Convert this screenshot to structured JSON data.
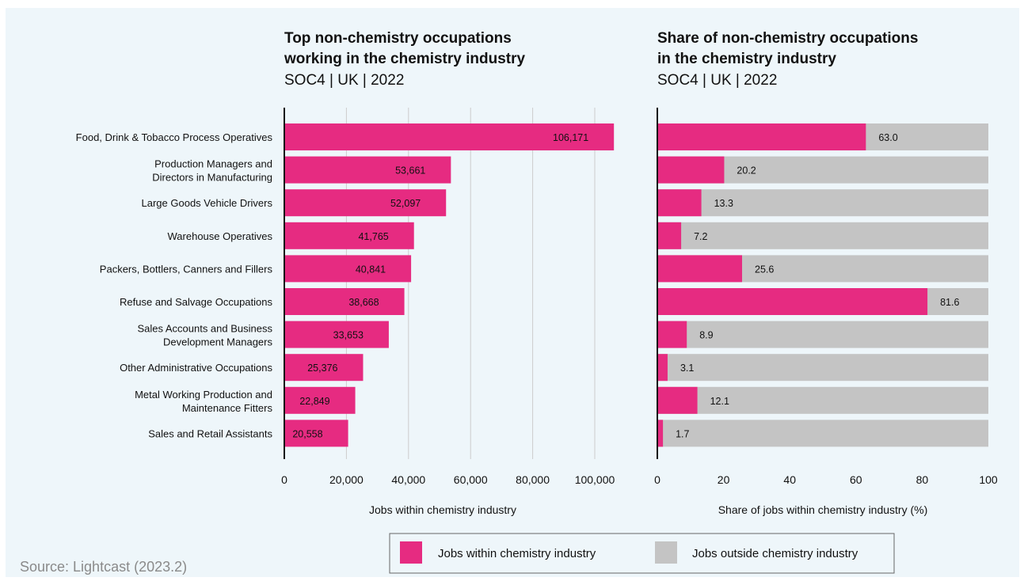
{
  "source": "Source: Lightcast (2023.2)",
  "colors": {
    "inside": "#e62b81",
    "outside": "#c4c4c4",
    "grid": "#cccccc",
    "axis": "#111111"
  },
  "legend": [
    {
      "label": "Jobs within chemistry industry",
      "color": "#e62b81"
    },
    {
      "label": "Jobs outside chemistry industry",
      "color": "#c4c4c4"
    }
  ],
  "chart_data": [
    {
      "type": "bar",
      "orientation": "horizontal",
      "title_lines": [
        "Top non-chemistry occupations",
        "working in the chemistry industry"
      ],
      "subtitle": "SOC4 | UK | 2022",
      "xlabel": "Jobs within chemistry industry",
      "xlim": [
        0,
        110000
      ],
      "xticks": [
        0,
        20000,
        40000,
        60000,
        80000,
        100000
      ],
      "xtick_labels": [
        "0",
        "20,000",
        "40,000",
        "60,000",
        "80,000",
        "100,000"
      ],
      "grid": true,
      "categories": [
        [
          "Food, Drink & Tobacco Process Operatives"
        ],
        [
          "Production Managers and",
          "Directors in Manufacturing"
        ],
        [
          "Large Goods Vehicle Drivers"
        ],
        [
          "Warehouse Operatives"
        ],
        [
          "Packers, Bottlers, Canners and Fillers"
        ],
        [
          "Refuse and Salvage Occupations"
        ],
        [
          "Sales Accounts and Business",
          "Development Managers"
        ],
        [
          "Other Administrative Occupations"
        ],
        [
          "Metal Working Production and",
          "Maintenance Fitters"
        ],
        [
          "Sales and Retail Assistants"
        ]
      ],
      "values": [
        106171,
        53661,
        52097,
        41765,
        40841,
        38668,
        33653,
        25376,
        22849,
        20558
      ],
      "value_labels": [
        "106,171",
        "53,661",
        "52,097",
        "41,765",
        "40,841",
        "38,668",
        "33,653",
        "25,376",
        "22,849",
        "20,558"
      ]
    },
    {
      "type": "bar",
      "orientation": "horizontal",
      "stacked": true,
      "title_lines": [
        "Share of non-chemistry occupations",
        "in the chemistry industry"
      ],
      "subtitle": "SOC4 | UK | 2022",
      "xlabel": "Share of jobs within chemistry industry (%)",
      "xlim": [
        0,
        100
      ],
      "xticks": [
        0,
        20,
        40,
        60,
        80,
        100
      ],
      "xtick_labels": [
        "0",
        "20",
        "40",
        "60",
        "80",
        "100"
      ],
      "grid": false,
      "values": [
        63.0,
        20.2,
        13.3,
        7.2,
        25.6,
        81.6,
        8.9,
        3.1,
        12.1,
        1.7
      ],
      "value_labels": [
        "63.0",
        "20.2",
        "13.3",
        "7.2",
        "25.6",
        "81.6",
        "8.9",
        "3.1",
        "12.1",
        "1.7"
      ]
    }
  ]
}
